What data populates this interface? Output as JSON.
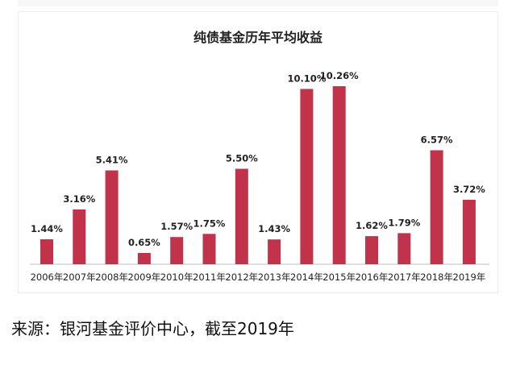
{
  "caption": "来源：银河基金评价中心，截至2019年",
  "chart_data": {
    "type": "bar",
    "title": "纯债基金历年平均收益",
    "categories": [
      "2006年",
      "2007年",
      "2008年",
      "2009年",
      "2010年",
      "2011年",
      "2012年",
      "2013年",
      "2014年",
      "2015年",
      "2016年",
      "2017年",
      "2018年",
      "2019年"
    ],
    "values": [
      1.44,
      3.16,
      5.41,
      0.65,
      1.57,
      1.75,
      5.5,
      1.43,
      10.1,
      10.26,
      1.62,
      1.79,
      6.57,
      3.72
    ],
    "data_labels": [
      "1.44%",
      "3.16%",
      "5.41%",
      "0.65%",
      "1.57%",
      "1.75%",
      "5.50%",
      "1.43%",
      "10.10%",
      "10.26%",
      "1.62%",
      "1.79%",
      "6.57%",
      "3.72%"
    ],
    "xlabel": "",
    "ylabel": "",
    "ylim": [
      0,
      10.26
    ],
    "grid": false,
    "legend": "none",
    "bar_color": "#c0334a",
    "axis_color": "#bbbbbb"
  }
}
